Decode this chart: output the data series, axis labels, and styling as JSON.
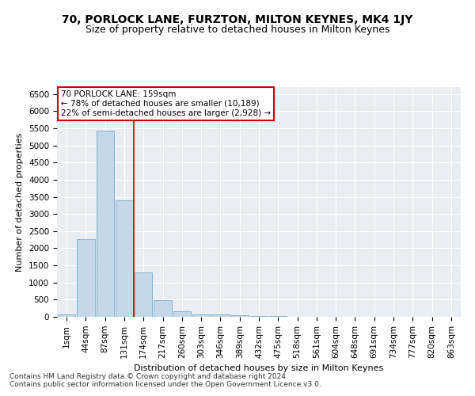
{
  "title": "70, PORLOCK LANE, FURZTON, MILTON KEYNES, MK4 1JY",
  "subtitle": "Size of property relative to detached houses in Milton Keynes",
  "xlabel": "Distribution of detached houses by size in Milton Keynes",
  "ylabel": "Number of detached properties",
  "footer_line1": "Contains HM Land Registry data © Crown copyright and database right 2024.",
  "footer_line2": "Contains public sector information licensed under the Open Government Licence v3.0.",
  "bar_color": "#c5d8ea",
  "bar_edge_color": "#7aaccc",
  "annotation_line1": "70 PORLOCK LANE: 159sqm",
  "annotation_line2": "← 78% of detached houses are smaller (10,189)",
  "annotation_line3": "22% of semi-detached houses are larger (2,928) →",
  "annotation_box_edgecolor": "#cc0000",
  "vline_bar_index": 3.5,
  "vline_color": "#cc0000",
  "categories": [
    "1sqm",
    "44sqm",
    "87sqm",
    "131sqm",
    "174sqm",
    "217sqm",
    "260sqm",
    "303sqm",
    "346sqm",
    "389sqm",
    "432sqm",
    "475sqm",
    "518sqm",
    "561sqm",
    "604sqm",
    "648sqm",
    "691sqm",
    "734sqm",
    "777sqm",
    "820sqm",
    "863sqm"
  ],
  "values": [
    75,
    2270,
    5430,
    3390,
    1300,
    480,
    160,
    80,
    70,
    50,
    15,
    15,
    5,
    3,
    2,
    1,
    1,
    0,
    0,
    0,
    0
  ],
  "ylim_max": 6700,
  "yticks": [
    0,
    500,
    1000,
    1500,
    2000,
    2500,
    3000,
    3500,
    4000,
    4500,
    5000,
    5500,
    6000,
    6500
  ],
  "fig_bg": "#ffffff",
  "plot_bg": "#e8eef4",
  "grid_color": "#ffffff",
  "title_fontsize": 10,
  "subtitle_fontsize": 9,
  "label_fontsize": 8,
  "tick_fontsize": 7.5,
  "footer_fontsize": 6.5
}
